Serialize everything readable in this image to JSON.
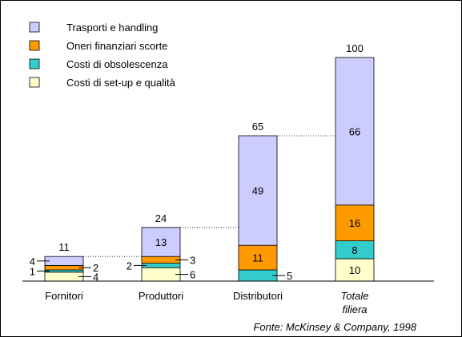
{
  "chart_data": {
    "type": "bar",
    "stacked": true,
    "waterfall_connectors": true,
    "categories": [
      "Fornitori",
      "Produttori",
      "Distributori",
      "Totale filiera"
    ],
    "category_italic": [
      false,
      false,
      false,
      true
    ],
    "totals": [
      11,
      24,
      65,
      100
    ],
    "series": [
      {
        "name": "Costi di set-up e qualità",
        "color": "#ffffcc",
        "values": [
          4,
          6,
          0,
          10
        ]
      },
      {
        "name": "Costi di obsolescenza",
        "color": "#33cccc",
        "values": [
          1,
          2,
          5,
          8
        ]
      },
      {
        "name": "Oneri finanziari scorte",
        "color": "#ff9900",
        "values": [
          2,
          3,
          11,
          16
        ]
      },
      {
        "name": "Trasporti e handling",
        "color": "#ccccff",
        "values": [
          4,
          13,
          49,
          66
        ]
      }
    ],
    "segment_labels": [
      [
        {
          "text": "4",
          "side": "right"
        },
        {
          "text": "1",
          "side": "left"
        },
        {
          "text": "2",
          "side": "right"
        },
        {
          "text": "4",
          "side": "left"
        }
      ],
      [
        {
          "text": "6",
          "side": "right"
        },
        {
          "text": "2",
          "side": "left"
        },
        {
          "text": "3",
          "side": "right"
        },
        {
          "text": "13",
          "side": "inside"
        }
      ],
      [
        {
          "text": "",
          "side": "none"
        },
        {
          "text": "5",
          "side": "right"
        },
        {
          "text": "11",
          "side": "inside"
        },
        {
          "text": "49",
          "side": "inside"
        }
      ],
      [
        {
          "text": "10",
          "side": "inside"
        },
        {
          "text": "8",
          "side": "inside"
        },
        {
          "text": "16",
          "side": "inside"
        },
        {
          "text": "66",
          "side": "inside"
        }
      ]
    ],
    "legend_order": [
      3,
      2,
      1,
      0
    ],
    "legend_position": "top-left",
    "ylim": [
      0,
      100
    ],
    "grid": false,
    "source": "Fonte: McKinsey & Company, 1998"
  }
}
